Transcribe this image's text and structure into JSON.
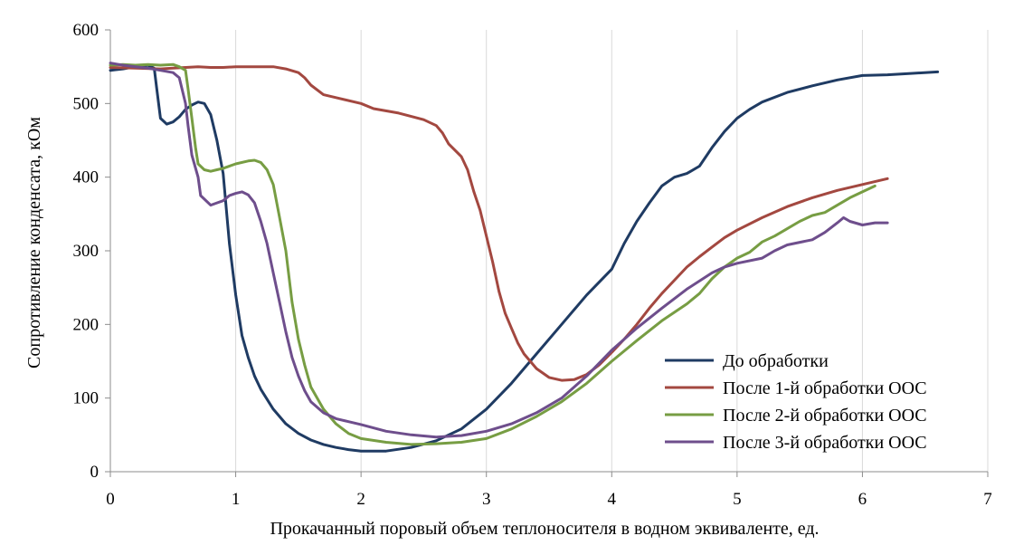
{
  "chart_data": {
    "type": "line",
    "title": "",
    "xlabel": "Прокачанный поровый объем теплоносителя в водном эквиваленте, ед.",
    "ylabel": "Сопротивление конденсата, кОм",
    "xlim": [
      0,
      7
    ],
    "ylim": [
      0,
      600
    ],
    "xticks": [
      0,
      1,
      2,
      3,
      4,
      5,
      6,
      7
    ],
    "yticks": [
      0,
      100,
      200,
      300,
      400,
      500,
      600
    ],
    "grid": "vertical",
    "legend_position": "lower-right",
    "series": [
      {
        "name": "До обработки",
        "color": "#1f3b63",
        "points": [
          [
            0,
            545
          ],
          [
            0.1,
            547
          ],
          [
            0.2,
            550
          ],
          [
            0.3,
            552
          ],
          [
            0.35,
            548
          ],
          [
            0.37,
            520
          ],
          [
            0.4,
            480
          ],
          [
            0.45,
            472
          ],
          [
            0.5,
            475
          ],
          [
            0.55,
            482
          ],
          [
            0.6,
            492
          ],
          [
            0.65,
            498
          ],
          [
            0.7,
            502
          ],
          [
            0.75,
            500
          ],
          [
            0.8,
            485
          ],
          [
            0.85,
            450
          ],
          [
            0.9,
            405
          ],
          [
            0.95,
            310
          ],
          [
            1.0,
            240
          ],
          [
            1.05,
            185
          ],
          [
            1.1,
            155
          ],
          [
            1.15,
            130
          ],
          [
            1.2,
            112
          ],
          [
            1.3,
            85
          ],
          [
            1.4,
            65
          ],
          [
            1.5,
            52
          ],
          [
            1.6,
            43
          ],
          [
            1.7,
            37
          ],
          [
            1.8,
            33
          ],
          [
            1.9,
            30
          ],
          [
            2.0,
            28
          ],
          [
            2.2,
            28
          ],
          [
            2.4,
            33
          ],
          [
            2.6,
            42
          ],
          [
            2.8,
            58
          ],
          [
            3.0,
            85
          ],
          [
            3.2,
            120
          ],
          [
            3.4,
            160
          ],
          [
            3.6,
            200
          ],
          [
            3.8,
            240
          ],
          [
            4.0,
            275
          ],
          [
            4.1,
            310
          ],
          [
            4.2,
            340
          ],
          [
            4.3,
            365
          ],
          [
            4.4,
            388
          ],
          [
            4.5,
            400
          ],
          [
            4.6,
            405
          ],
          [
            4.7,
            415
          ],
          [
            4.8,
            440
          ],
          [
            4.9,
            462
          ],
          [
            5.0,
            480
          ],
          [
            5.1,
            492
          ],
          [
            5.2,
            502
          ],
          [
            5.4,
            515
          ],
          [
            5.6,
            524
          ],
          [
            5.8,
            532
          ],
          [
            6.0,
            538
          ],
          [
            6.2,
            539
          ],
          [
            6.4,
            541
          ],
          [
            6.6,
            543
          ]
        ]
      },
      {
        "name": "После 1-й обработки ООС",
        "color": "#a34840",
        "points": [
          [
            0,
            549
          ],
          [
            0.2,
            548
          ],
          [
            0.4,
            547
          ],
          [
            0.5,
            548
          ],
          [
            0.6,
            549
          ],
          [
            0.7,
            550
          ],
          [
            0.8,
            549
          ],
          [
            0.9,
            549
          ],
          [
            1.0,
            550
          ],
          [
            1.1,
            550
          ],
          [
            1.2,
            550
          ],
          [
            1.3,
            550
          ],
          [
            1.4,
            547
          ],
          [
            1.5,
            542
          ],
          [
            1.55,
            535
          ],
          [
            1.6,
            525
          ],
          [
            1.7,
            512
          ],
          [
            1.8,
            508
          ],
          [
            2.0,
            500
          ],
          [
            2.1,
            493
          ],
          [
            2.3,
            487
          ],
          [
            2.5,
            478
          ],
          [
            2.6,
            470
          ],
          [
            2.65,
            460
          ],
          [
            2.7,
            445
          ],
          [
            2.8,
            428
          ],
          [
            2.85,
            410
          ],
          [
            2.9,
            380
          ],
          [
            2.95,
            355
          ],
          [
            3.0,
            320
          ],
          [
            3.05,
            285
          ],
          [
            3.1,
            245
          ],
          [
            3.15,
            215
          ],
          [
            3.2,
            195
          ],
          [
            3.25,
            175
          ],
          [
            3.3,
            160
          ],
          [
            3.4,
            140
          ],
          [
            3.5,
            128
          ],
          [
            3.6,
            124
          ],
          [
            3.7,
            125
          ],
          [
            3.8,
            132
          ],
          [
            3.9,
            145
          ],
          [
            4.0,
            162
          ],
          [
            4.1,
            180
          ],
          [
            4.2,
            200
          ],
          [
            4.3,
            222
          ],
          [
            4.4,
            242
          ],
          [
            4.5,
            260
          ],
          [
            4.6,
            278
          ],
          [
            4.7,
            292
          ],
          [
            4.8,
            305
          ],
          [
            4.9,
            318
          ],
          [
            5.0,
            328
          ],
          [
            5.2,
            345
          ],
          [
            5.4,
            360
          ],
          [
            5.6,
            372
          ],
          [
            5.8,
            382
          ],
          [
            6.0,
            390
          ],
          [
            6.2,
            398
          ]
        ]
      },
      {
        "name": "После 2-й обработки ООС",
        "color": "#779d43",
        "points": [
          [
            0,
            552
          ],
          [
            0.1,
            553
          ],
          [
            0.2,
            552
          ],
          [
            0.3,
            553
          ],
          [
            0.4,
            552
          ],
          [
            0.5,
            553
          ],
          [
            0.55,
            550
          ],
          [
            0.6,
            545
          ],
          [
            0.62,
            520
          ],
          [
            0.65,
            480
          ],
          [
            0.68,
            440
          ],
          [
            0.7,
            418
          ],
          [
            0.75,
            410
          ],
          [
            0.8,
            408
          ],
          [
            0.85,
            410
          ],
          [
            0.9,
            412
          ],
          [
            1.0,
            418
          ],
          [
            1.1,
            422
          ],
          [
            1.15,
            423
          ],
          [
            1.2,
            420
          ],
          [
            1.25,
            410
          ],
          [
            1.3,
            390
          ],
          [
            1.35,
            345
          ],
          [
            1.4,
            300
          ],
          [
            1.45,
            230
          ],
          [
            1.5,
            180
          ],
          [
            1.55,
            145
          ],
          [
            1.6,
            115
          ],
          [
            1.7,
            85
          ],
          [
            1.8,
            65
          ],
          [
            1.9,
            52
          ],
          [
            2.0,
            45
          ],
          [
            2.2,
            40
          ],
          [
            2.4,
            37
          ],
          [
            2.6,
            38
          ],
          [
            2.8,
            40
          ],
          [
            3.0,
            45
          ],
          [
            3.2,
            58
          ],
          [
            3.4,
            75
          ],
          [
            3.6,
            95
          ],
          [
            3.8,
            120
          ],
          [
            4.0,
            150
          ],
          [
            4.2,
            178
          ],
          [
            4.4,
            205
          ],
          [
            4.6,
            228
          ],
          [
            4.7,
            242
          ],
          [
            4.8,
            262
          ],
          [
            4.9,
            278
          ],
          [
            5.0,
            290
          ],
          [
            5.1,
            298
          ],
          [
            5.2,
            312
          ],
          [
            5.3,
            320
          ],
          [
            5.4,
            330
          ],
          [
            5.5,
            340
          ],
          [
            5.6,
            348
          ],
          [
            5.7,
            352
          ],
          [
            5.8,
            362
          ],
          [
            5.9,
            372
          ],
          [
            6.0,
            380
          ],
          [
            6.1,
            388
          ]
        ]
      },
      {
        "name": "После 3-й обработки ООС",
        "color": "#6e4e8c",
        "points": [
          [
            0,
            555
          ],
          [
            0.1,
            552
          ],
          [
            0.2,
            550
          ],
          [
            0.3,
            548
          ],
          [
            0.4,
            545
          ],
          [
            0.5,
            542
          ],
          [
            0.55,
            535
          ],
          [
            0.6,
            500
          ],
          [
            0.62,
            470
          ],
          [
            0.65,
            430
          ],
          [
            0.7,
            400
          ],
          [
            0.72,
            375
          ],
          [
            0.8,
            362
          ],
          [
            0.85,
            365
          ],
          [
            0.9,
            368
          ],
          [
            0.95,
            375
          ],
          [
            1.0,
            378
          ],
          [
            1.05,
            380
          ],
          [
            1.1,
            376
          ],
          [
            1.15,
            365
          ],
          [
            1.2,
            340
          ],
          [
            1.25,
            310
          ],
          [
            1.3,
            270
          ],
          [
            1.35,
            230
          ],
          [
            1.4,
            190
          ],
          [
            1.45,
            155
          ],
          [
            1.5,
            130
          ],
          [
            1.55,
            110
          ],
          [
            1.6,
            95
          ],
          [
            1.7,
            80
          ],
          [
            1.8,
            72
          ],
          [
            1.9,
            68
          ],
          [
            2.0,
            64
          ],
          [
            2.2,
            55
          ],
          [
            2.4,
            50
          ],
          [
            2.6,
            47
          ],
          [
            2.8,
            49
          ],
          [
            3.0,
            55
          ],
          [
            3.2,
            65
          ],
          [
            3.4,
            80
          ],
          [
            3.6,
            100
          ],
          [
            3.8,
            130
          ],
          [
            4.0,
            165
          ],
          [
            4.2,
            195
          ],
          [
            4.4,
            222
          ],
          [
            4.6,
            248
          ],
          [
            4.8,
            270
          ],
          [
            4.9,
            278
          ],
          [
            5.0,
            283
          ],
          [
            5.2,
            290
          ],
          [
            5.3,
            300
          ],
          [
            5.4,
            308
          ],
          [
            5.6,
            315
          ],
          [
            5.7,
            325
          ],
          [
            5.8,
            338
          ],
          [
            5.85,
            345
          ],
          [
            5.9,
            340
          ],
          [
            6.0,
            335
          ],
          [
            6.1,
            338
          ],
          [
            6.2,
            338
          ]
        ]
      }
    ]
  }
}
